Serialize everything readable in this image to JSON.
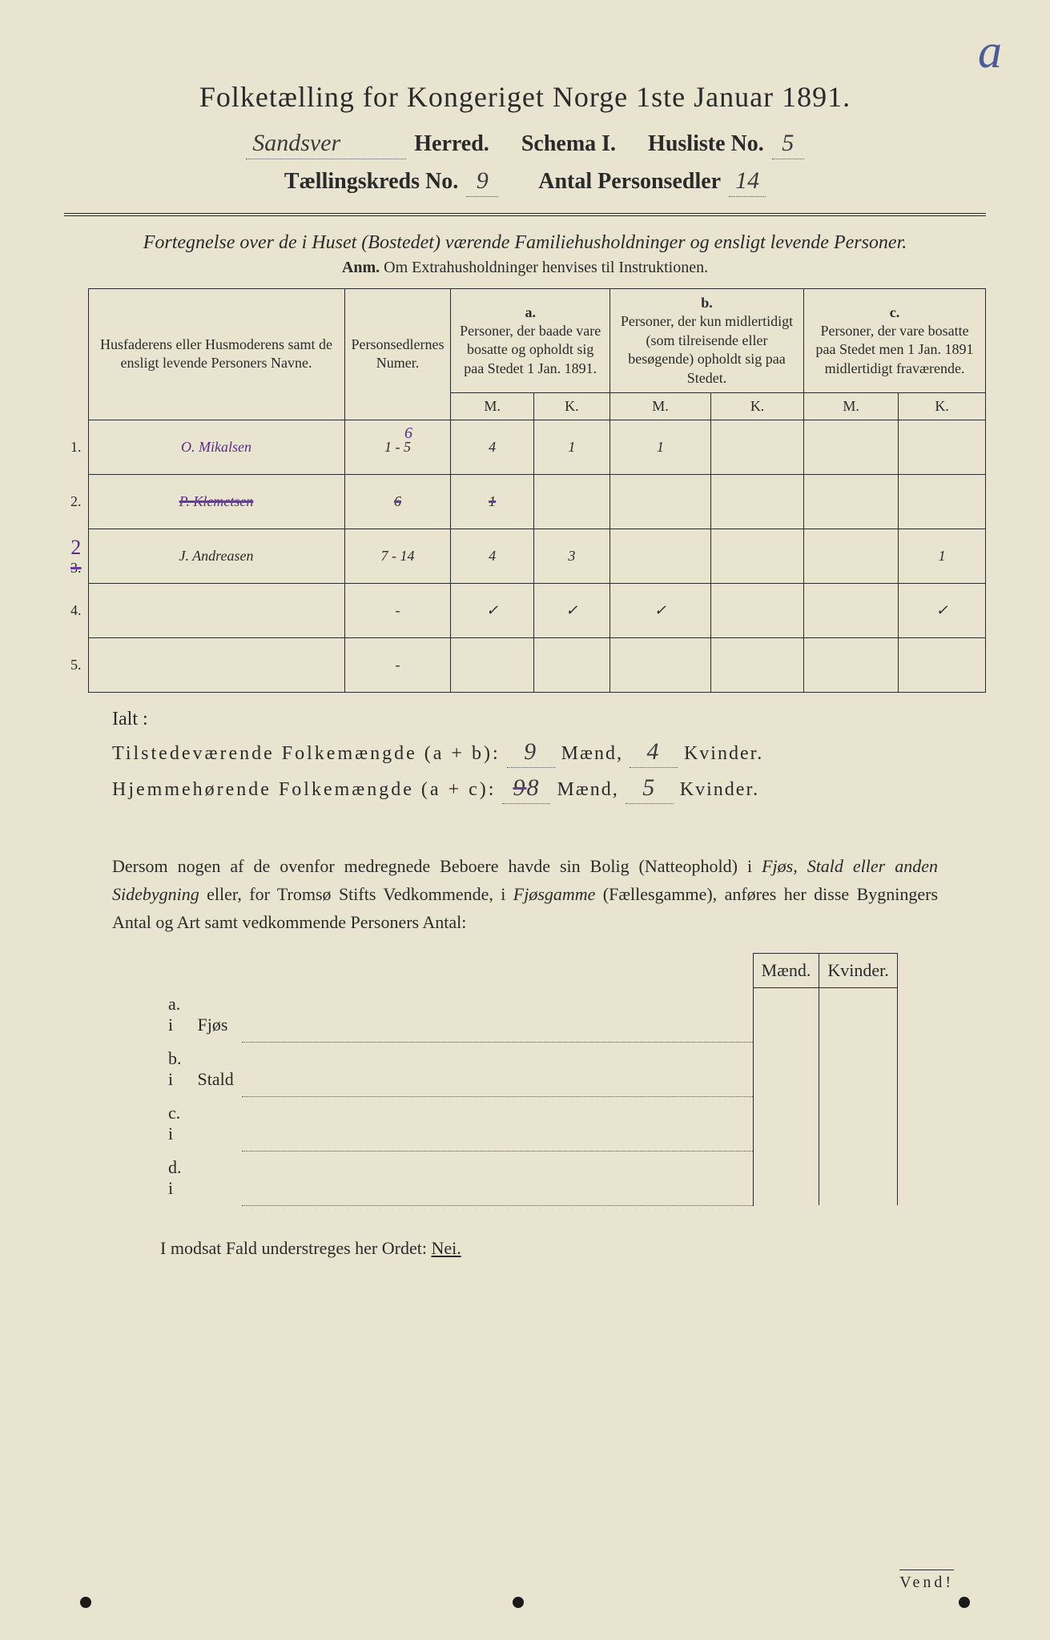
{
  "corner_mark": "a",
  "title": "Folketælling for Kongeriget Norge 1ste Januar 1891.",
  "meta": {
    "herred_value": "Sandsver",
    "herred_label": "Herred.",
    "schema_label": "Schema I.",
    "husliste_label": "Husliste No.",
    "husliste_value": "5",
    "kreds_label": "Tællingskreds No.",
    "kreds_value": "9",
    "antal_label": "Antal Personsedler",
    "antal_value": "14"
  },
  "subtitle": "Fortegnelse over de i Huset (Bostedet) værende Familiehusholdninger og ensligt levende Personer.",
  "anm": "Anm.  Om Extrahusholdninger henvises til Instruktionen.",
  "headers": {
    "names": "Husfaderens eller Husmoderens samt de ensligt levende Personers Navne.",
    "nums": "Personsedlernes Numer.",
    "a_letter": "a.",
    "a_text": "Personer, der baade vare bosatte og opholdt sig paa Stedet 1 Jan. 1891.",
    "b_letter": "b.",
    "b_text": "Personer, der kun midlertidigt (som tilreisende eller besøgende) opholdt sig paa Stedet.",
    "c_letter": "c.",
    "c_text": "Personer, der vare bosatte paa Stedet men 1 Jan. 1891 midlertidigt fraværende.",
    "m": "M.",
    "k": "K."
  },
  "rows": [
    {
      "no": "1.",
      "name": "O. Mikalsen",
      "nums": "1 - 5",
      "nums_over": "6",
      "am": "4",
      "ak": "1",
      "bm": "1",
      "bk": "",
      "cm": "",
      "ck": "",
      "struck": false,
      "purple": true
    },
    {
      "no": "2.",
      "name": "P. Klemetsen",
      "nums": "6",
      "am": "1",
      "ak": "",
      "bm": "",
      "bk": "",
      "cm": "",
      "ck": "",
      "struck": true,
      "purple": true
    },
    {
      "no": "2 3.",
      "name": "J. Andreasen",
      "nums": "7 - 14",
      "am": "4",
      "ak": "3",
      "bm": "",
      "bk": "",
      "cm": "",
      "ck": "1",
      "struck": false,
      "purple": false,
      "no_over": "2"
    },
    {
      "no": "4.",
      "name": "",
      "nums": "-",
      "am": "✓",
      "ak": "✓",
      "bm": "✓",
      "bk": "",
      "cm": "",
      "ck": "✓",
      "struck": false,
      "purple": false
    },
    {
      "no": "5.",
      "name": "",
      "nums": "-",
      "am": "",
      "ak": "",
      "bm": "",
      "bk": "",
      "cm": "",
      "ck": "",
      "struck": false,
      "purple": false
    }
  ],
  "ialt": "Ialt :",
  "sum1": {
    "label": "Tilstedeværende Folkemængde (a + b):",
    "m": "9",
    "mlabel": "Mænd,",
    "k": "4",
    "klabel": "Kvinder."
  },
  "sum2": {
    "label": "Hjemmehørende Folkemængde (a + c):",
    "m": "8",
    "m_struck": "9",
    "mlabel": "Mænd,",
    "k": "5",
    "klabel": "Kvinder."
  },
  "para": {
    "t1": "Dersom nogen af de ovenfor medregnede Beboere havde sin Bolig (Natteophold) i ",
    "t2": "Fjøs, Stald eller anden Sidebygning",
    "t3": " eller, for Tromsø Stifts Vedkommende, i ",
    "t4": "Fjøsgamme",
    "t5": " (Fællesgamme), anføres her disse Bygningers Antal og Art samt vedkommende Personers Antal:"
  },
  "lower_heads": {
    "m": "Mænd.",
    "k": "Kvinder."
  },
  "lower_rows": [
    {
      "l": "a.  i",
      "t": "Fjøs"
    },
    {
      "l": "b.  i",
      "t": "Stald"
    },
    {
      "l": "c.  i",
      "t": ""
    },
    {
      "l": "d.  i",
      "t": ""
    }
  ],
  "modsat": {
    "t1": "I modsat Fald understreges her Ordet: ",
    "nei": "Nei."
  },
  "vend": "Vend!"
}
